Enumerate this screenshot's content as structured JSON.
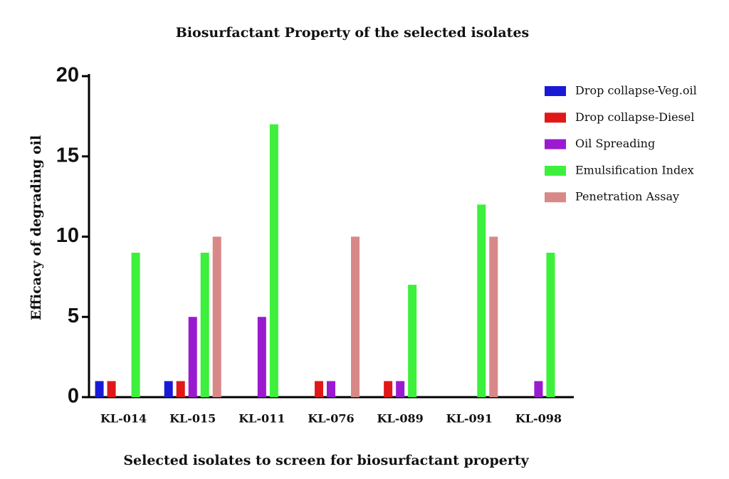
{
  "chart_data": {
    "type": "bar",
    "title": "Biosurfactant Property of the selected isolates",
    "x_label": "Selected isolates to screen for biosurfactant property",
    "y_label": "Efficacy of degrading oil",
    "categories": [
      "KL-014",
      "KL-015",
      "KL-011",
      "KL-076",
      "KL-089",
      "KL-091",
      "KL-098"
    ],
    "series": [
      {
        "name": "Drop collapse-Veg.oil",
        "color": "#1a1ad6",
        "values": [
          1,
          1,
          0,
          0,
          0,
          0,
          0
        ]
      },
      {
        "name": "Drop collapse-Diesel",
        "color": "#e01818",
        "values": [
          1,
          1,
          0,
          1,
          1,
          0,
          0
        ]
      },
      {
        "name": "Oil Spreading",
        "color": "#9a1ad0",
        "values": [
          0,
          5,
          5,
          1,
          1,
          0,
          1
        ]
      },
      {
        "name": "Emulsification Index",
        "color": "#3cf03c",
        "values": [
          9,
          9,
          17,
          0,
          7,
          12,
          9
        ]
      },
      {
        "name": "Penetration Assay",
        "color": "#d98888",
        "values": [
          0,
          10,
          0,
          10,
          0,
          10,
          0
        ]
      }
    ],
    "ylim": [
      0,
      20
    ],
    "yticks": [
      0,
      5,
      10,
      15,
      20
    ]
  }
}
